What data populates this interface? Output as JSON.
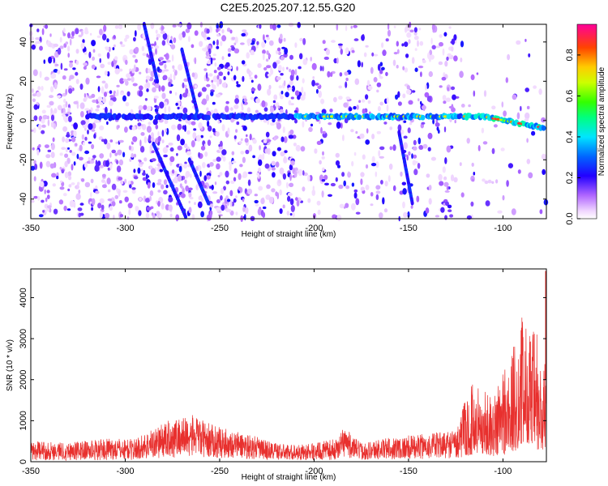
{
  "title": "C2E5.2025.207.12.55.G20",
  "chart_data": [
    {
      "type": "heatmap",
      "name": "spectrogram",
      "xlabel": "Height of straight line (km)",
      "ylabel": "Frequency (Hz)",
      "xlim": [
        -350,
        -77
      ],
      "ylim": [
        -50,
        49
      ],
      "x_ticks": [
        -350,
        -300,
        -250,
        -200,
        -150,
        -100
      ],
      "y_ticks": [
        -40,
        -20,
        0,
        20,
        40
      ],
      "colorbar": {
        "label": "Normalized spectral amplitude",
        "range": [
          0,
          0.95
        ],
        "ticks": [
          "0.0",
          "0.2",
          "0.4",
          "0.6",
          "0.8"
        ]
      },
      "features": [
        {
          "kind": "horizontal-band",
          "x_range": [
            -320,
            -77
          ],
          "frequency_hz": 2,
          "bend_to_hz": -4,
          "bend_from_x": -110,
          "amplitude_peak": 0.9
        },
        {
          "kind": "slanted-streak",
          "x_range": [
            -290,
            -283
          ],
          "frequency_range": [
            20,
            49
          ]
        },
        {
          "kind": "slanted-streak",
          "x_range": [
            -270,
            -262
          ],
          "frequency_range": [
            5,
            36
          ]
        },
        {
          "kind": "slanted-streak",
          "x_range": [
            -285,
            -268
          ],
          "frequency_range": [
            -49,
            -12
          ]
        },
        {
          "kind": "slanted-streak",
          "x_range": [
            -266,
            -256
          ],
          "frequency_range": [
            -42,
            -20
          ]
        },
        {
          "kind": "slanted-streak",
          "x_range": [
            -155,
            -148
          ],
          "frequency_range": [
            -42,
            -6
          ]
        }
      ]
    },
    {
      "type": "line",
      "name": "snr",
      "xlabel": "Height of straight line (km)",
      "ylabel": "SNR (10 * v/v)",
      "xlim": [
        -350,
        -77
      ],
      "ylim": [
        0,
        4700
      ],
      "x_ticks": [
        -350,
        -300,
        -250,
        -200,
        -150,
        -100
      ],
      "y_ticks": [
        0,
        1000,
        2000,
        3000,
        4000
      ],
      "color": "#e8302e",
      "envelope": {
        "x": [
          -350,
          -330,
          -310,
          -295,
          -285,
          -275,
          -265,
          -255,
          -245,
          -235,
          -225,
          -215,
          -205,
          -195,
          -188,
          -184,
          -180,
          -175,
          -165,
          -155,
          -145,
          -135,
          -125,
          -120,
          -115,
          -110,
          -105,
          -100,
          -97,
          -93,
          -90,
          -87,
          -85,
          -82,
          -80,
          -78
        ],
        "base": [
          120,
          110,
          120,
          130,
          250,
          330,
          380,
          320,
          270,
          220,
          150,
          120,
          120,
          130,
          150,
          420,
          240,
          150,
          170,
          190,
          210,
          240,
          260,
          380,
          650,
          640,
          450,
          520,
          650,
          900,
          1400,
          1550,
          1200,
          700,
          600,
          700
        ],
        "peak": [
          500,
          480,
          560,
          560,
          820,
          1050,
          1150,
          920,
          780,
          680,
          520,
          420,
          420,
          500,
          560,
          900,
          640,
          460,
          560,
          620,
          660,
          720,
          780,
          1500,
          2100,
          1800,
          1600,
          2600,
          2500,
          3050,
          3600,
          3400,
          3200,
          3300,
          2400,
          2600
        ]
      }
    }
  ]
}
